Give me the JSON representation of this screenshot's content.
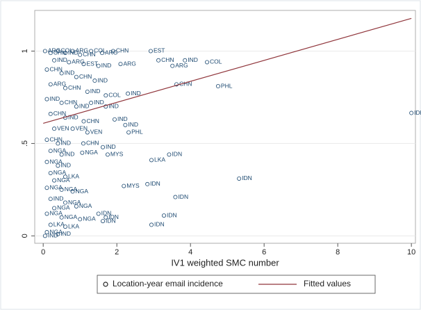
{
  "chart_data": {
    "type": "scatter",
    "x_label": "IV1 weighted SMC number",
    "xlim": [
      -0.23,
      10.11
    ],
    "ylim": [
      -0.04,
      1.22
    ],
    "xticks": [
      0,
      2,
      4,
      6,
      8,
      10
    ],
    "yticks": [
      0,
      {
        "value": 0.5,
        "label": ".5"
      },
      1
    ],
    "grid": true,
    "legend": "bottom",
    "series": [
      {
        "name": "Location-year email incidence",
        "color": "#1a476f",
        "marker": "circle",
        "x": [
          10,
          5.32,
          4.45,
          4.75,
          3.59,
          3.28,
          2.94,
          2.19,
          2.83,
          2.94,
          3.42,
          1.75,
          1.62,
          1.09,
          1.06,
          2.32,
          1.94,
          2.23,
          3.51,
          3.13,
          3.85,
          2.92,
          3.62,
          1.62,
          1.5,
          0.05,
          0.2,
          0.4,
          0.6,
          0.8,
          1.0,
          1.3,
          1.6,
          1.9,
          0.3,
          0.7,
          1.1,
          1.5,
          2.1,
          0.1,
          0.5,
          0.9,
          1.4,
          0.2,
          0.6,
          1.2,
          1.7,
          2.3,
          0.1,
          0.5,
          0.9,
          1.3,
          1.7,
          0.2,
          0.6,
          1.1,
          0.3,
          0.8,
          1.2,
          0.1,
          0.4,
          0.2,
          0.5,
          0.1,
          0.4,
          0.2,
          0.6,
          0.3,
          0.1,
          0.5,
          0.8,
          0.2,
          0.6,
          0.3,
          0.9,
          0.1,
          0.5,
          1.0,
          0.2,
          0.6,
          0.1,
          0.4,
          0.05,
          1.7
        ],
        "values": [
          0.665,
          0.31,
          0.94,
          0.81,
          0.21,
          0.11,
          0.06,
          0.27,
          0.28,
          0.41,
          0.44,
          0.44,
          0.48,
          0.5,
          0.45,
          0.56,
          0.63,
          0.6,
          0.92,
          0.95,
          0.95,
          1.0,
          0.82,
          0.08,
          0.12,
          1.0,
          0.99,
          1.0,
          0.99,
          1.0,
          0.98,
          1.0,
          0.99,
          1.0,
          0.95,
          0.94,
          0.93,
          0.92,
          0.93,
          0.9,
          0.88,
          0.86,
          0.84,
          0.82,
          0.8,
          0.78,
          0.76,
          0.77,
          0.74,
          0.72,
          0.7,
          0.72,
          0.7,
          0.66,
          0.64,
          0.62,
          0.58,
          0.58,
          0.56,
          0.52,
          0.5,
          0.46,
          0.44,
          0.4,
          0.38,
          0.34,
          0.32,
          0.3,
          0.26,
          0.25,
          0.24,
          0.2,
          0.18,
          0.15,
          0.16,
          0.12,
          0.1,
          0.09,
          0.06,
          0.05,
          0.02,
          0.01,
          0.0,
          0.1
        ],
        "labels": [
          "IDN",
          "IDN",
          "COL",
          "PHL",
          "IDN",
          "IDN",
          "IDN",
          "MYS",
          "IDN",
          "LKA",
          "IDN",
          "MYS",
          "IND",
          "CHN",
          "NGA",
          "PHL",
          "IND",
          "IND",
          "ARG",
          "CHN",
          "IND",
          "EST",
          "CHN",
          "IDN",
          "IDN",
          "ARG",
          "CHN",
          "COL",
          "IND",
          "ARG",
          "CHN",
          "COL",
          "ARG",
          "CHN",
          "IND",
          "ARG",
          "EST",
          "IND",
          "ARG",
          "CHN",
          "IND",
          "CHN",
          "IND",
          "ARG",
          "CHN",
          "IND",
          "COL",
          "IND",
          "IND",
          "CHN",
          "IND",
          "IND",
          "IND",
          "CHN",
          "IND",
          "CHN",
          "VEN",
          "VEN",
          "VEN",
          "CHN",
          "IND",
          "NGA",
          "IND",
          "NGA",
          "IND",
          "NGA",
          "LKA",
          "NGA",
          "NGA",
          "NGA",
          "NGA",
          "IND",
          "NGA",
          "NGA",
          "NGA",
          "NGA",
          "NGA",
          "NGA",
          "LKA",
          "LKA",
          "NGA",
          "IND",
          "IND",
          "IDN"
        ]
      },
      {
        "name": "Fitted values",
        "color": "#90353b",
        "marker": "line",
        "x": [
          0,
          10
        ],
        "values": [
          0.609,
          1.177
        ]
      }
    ]
  }
}
